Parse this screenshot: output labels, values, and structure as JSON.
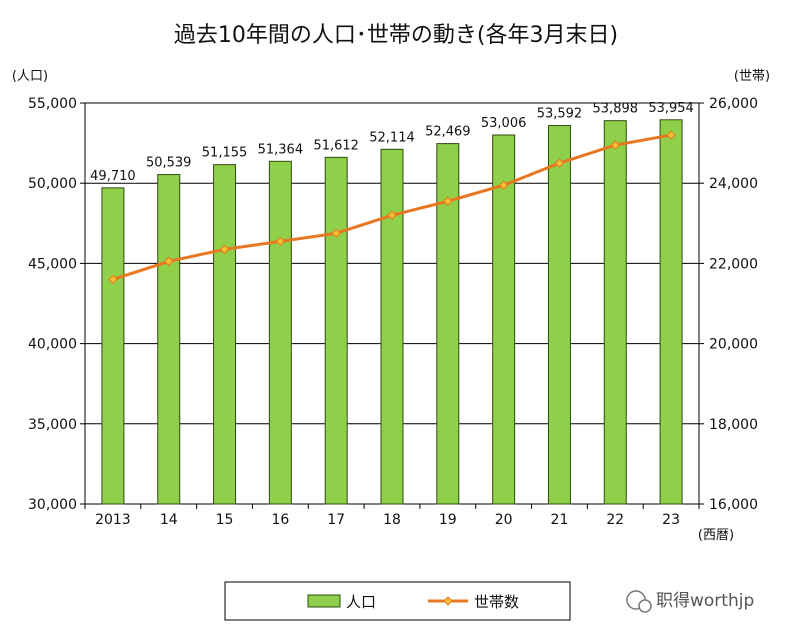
{
  "chart_data": {
    "type": "bar",
    "title": "過去10年間の人口･世帯の動き(各年3月末日)",
    "categories": [
      "2013",
      "14",
      "15",
      "16",
      "17",
      "18",
      "19",
      "20",
      "21",
      "22",
      "23"
    ],
    "xlabel": "(西暦)",
    "ylabel": "(人口)",
    "y2label": "(世帯)",
    "ylim": [
      30000,
      55000
    ],
    "y2lim": [
      16000,
      26000
    ],
    "yticks": [
      "30,000",
      "35,000",
      "40,000",
      "45,000",
      "50,000",
      "55,000"
    ],
    "y2ticks": [
      "16,000",
      "18,000",
      "20,000",
      "22,000",
      "24,000",
      "26,000"
    ],
    "grid": true,
    "legend_position": "bottom",
    "series": [
      {
        "name": "人口",
        "type": "bar",
        "axis": "left",
        "color": "#8fcf4a",
        "values": [
          49710,
          50539,
          51155,
          51364,
          51612,
          52114,
          52469,
          53006,
          53592,
          53898,
          53954
        ],
        "labels": [
          "49,710",
          "50,539",
          "51,155",
          "51,364",
          "51,612",
          "52,114",
          "52,469",
          "53,006",
          "53,592",
          "53,898",
          "53,954"
        ]
      },
      {
        "name": "世帯数",
        "type": "line",
        "axis": "right",
        "color": "#e87722",
        "marker_color": "#f2c230",
        "values": [
          21600,
          22050,
          22350,
          22550,
          22750,
          23200,
          23550,
          23950,
          24500,
          24950,
          25200
        ]
      }
    ]
  },
  "watermark": "职得worthjp"
}
